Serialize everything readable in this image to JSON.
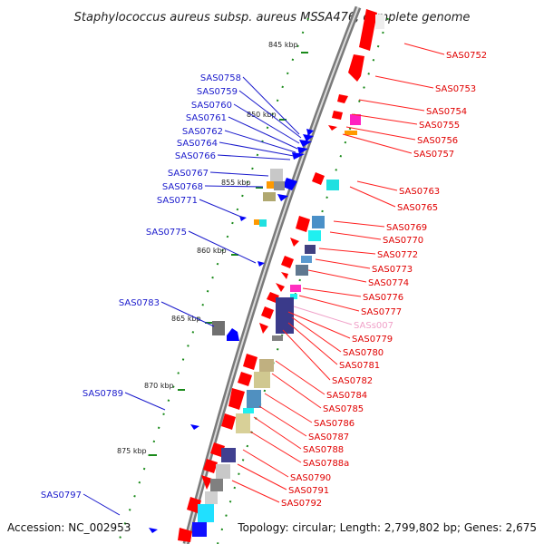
{
  "title": "Staphylococcus aureus subsp. aureus MSSA476, complete genome",
  "footer": {
    "accession": "Accession: NC_002953",
    "topology": "Topology: circular; Length: 2,799,802 bp; Genes: 2,675"
  },
  "kbp_ticks": [
    "845 kbp",
    "850 kbp",
    "855 kbp",
    "860 kbp",
    "865 kbp",
    "870 kbp",
    "875 kbp"
  ],
  "forward_genes": [
    "SAS0752",
    "SAS0753",
    "SAS0754",
    "SAS0755",
    "SAS0756",
    "SAS0757",
    "SAS0763",
    "SAS0765",
    "SAS0769",
    "SAS0770",
    "SAS0772",
    "SAS0773",
    "SAS0774",
    "SAS0776",
    "SAS0777",
    "SASs007",
    "SAS0779",
    "SAS0780",
    "SAS0781",
    "SAS0782",
    "SAS0784",
    "SAS0785",
    "SAS0786",
    "SAS0787",
    "SAS0788",
    "SAS0788a",
    "SAS0790",
    "SAS0791",
    "SAS0792"
  ],
  "reverse_genes": [
    "SAS0758",
    "SAS0759",
    "SAS0760",
    "SAS0761",
    "SAS0762",
    "SAS0764",
    "SAS0766",
    "SAS0767",
    "SAS0768",
    "SAS0771",
    "SAS0775",
    "SAS0783",
    "SAS0789",
    "SAS0797"
  ],
  "colors": {
    "forward": "#ff0000",
    "reverse": "#0000ff",
    "backbone": "#8a8a8a",
    "tick": "#1a8a1a",
    "leader_forward": "#ff2020",
    "leader_reverse": "#1a1acc",
    "rna": "#f0a0c8"
  }
}
